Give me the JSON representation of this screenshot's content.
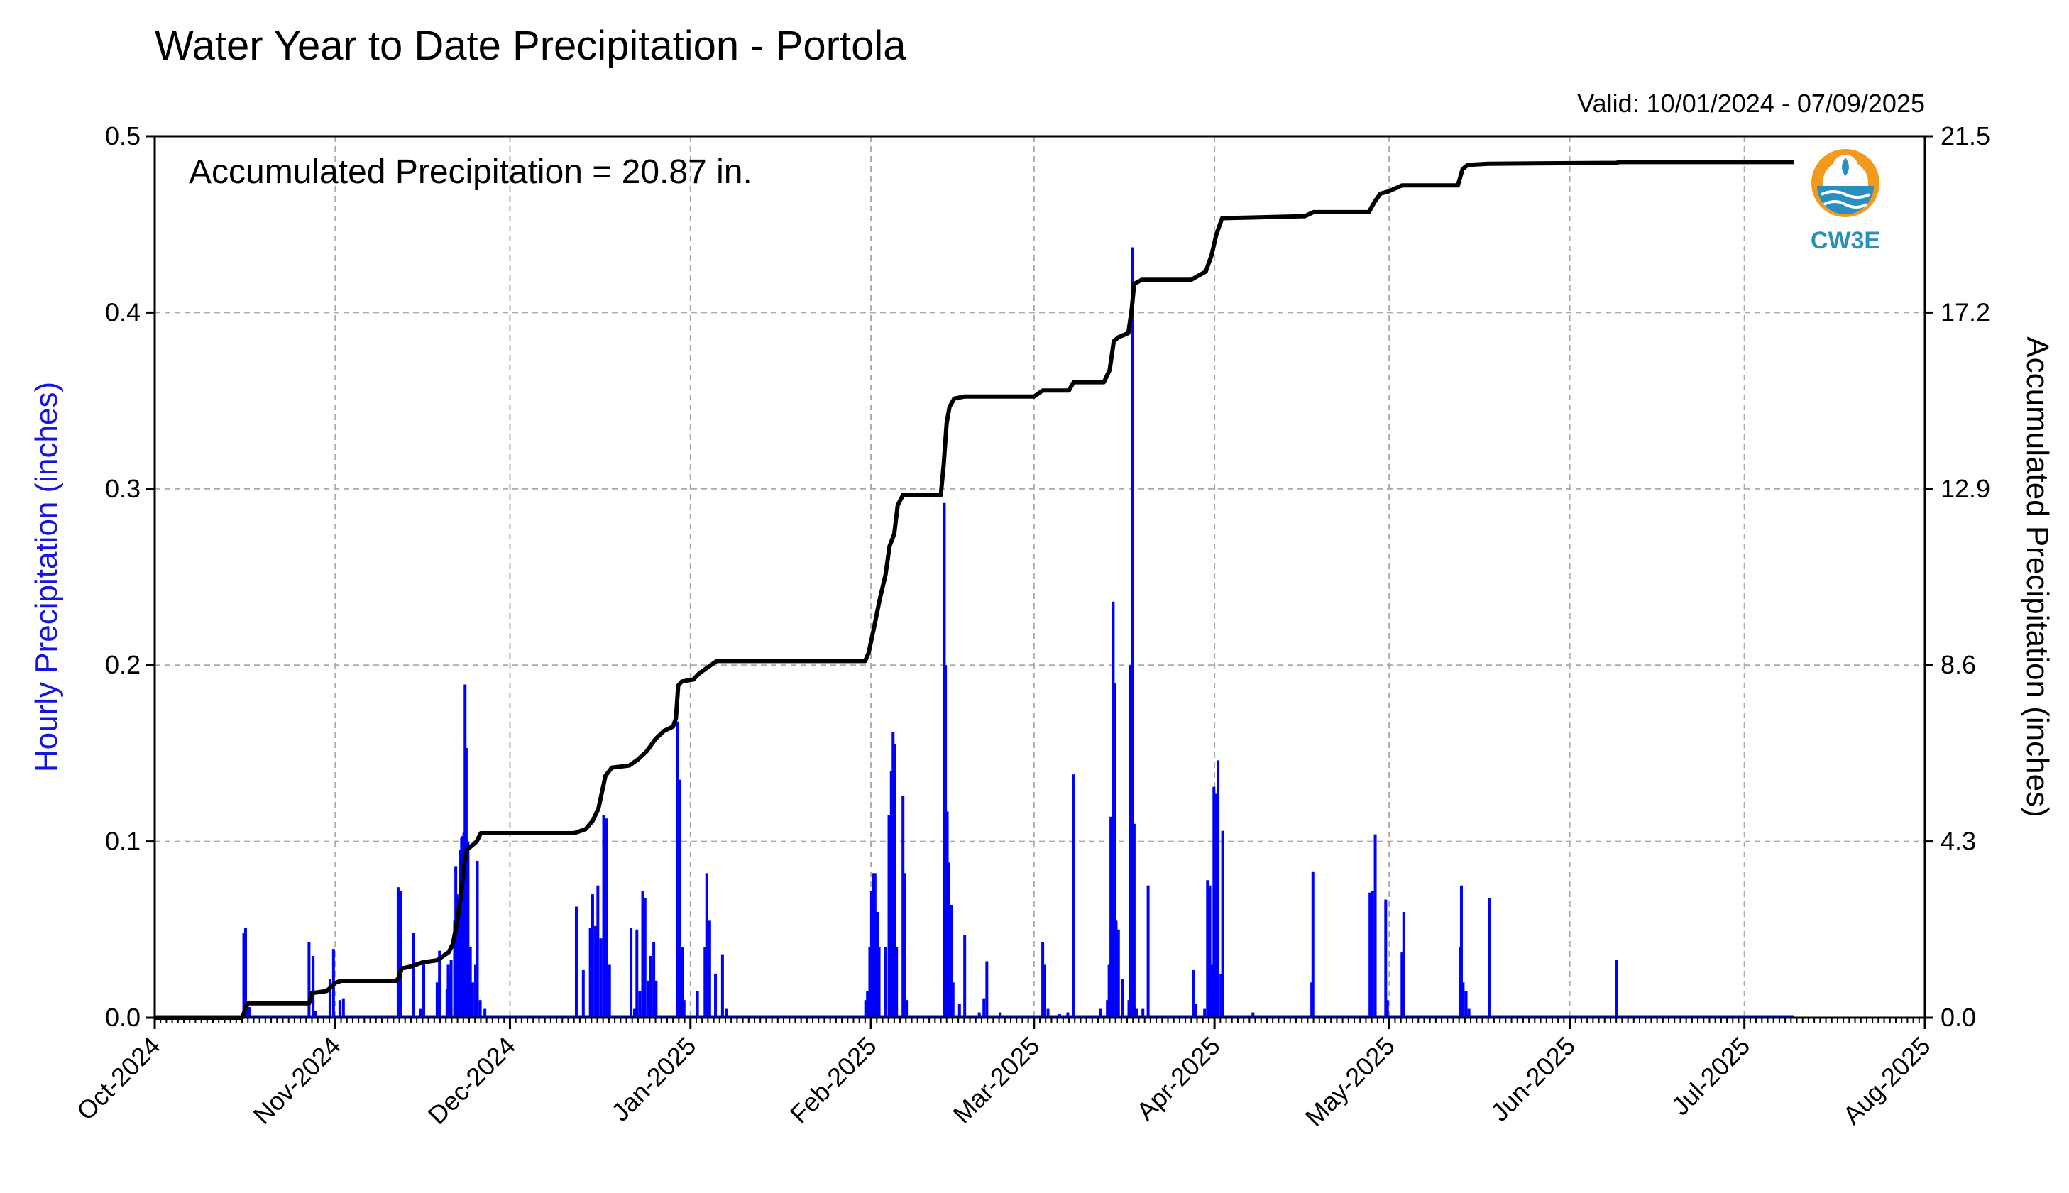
{
  "title": "Water Year to Date Precipitation - Portola",
  "valid_text": "Valid: 10/01/2024 - 07/09/2025",
  "accum_text": "Accumulated Precipitation = 20.87 in.",
  "logo": {
    "icon": "cw3e-logo-icon",
    "text": "CW3E",
    "ring_color": "#f39a1e",
    "wave_color": "#2a8fbf"
  },
  "colors": {
    "hourly": "#0000ff",
    "accum": "#000000",
    "grid": "#aaaaaa"
  },
  "chart_data": {
    "type": "bar",
    "xlabel": "",
    "ylabel": "Hourly Precipitation (inches)",
    "y2label": "Accumulated Precipitation (inches)",
    "ylim": [
      0,
      0.5
    ],
    "y2lim": [
      0,
      21.5
    ],
    "yticks": [
      "0.0",
      "0.1",
      "0.2",
      "0.3",
      "0.4",
      "0.5"
    ],
    "y2ticks": [
      "0.0",
      "4.3",
      "8.6",
      "12.9",
      "17.2",
      "21.5"
    ],
    "x_range_days": [
      0,
      304
    ],
    "xticks": [
      {
        "day": 0,
        "label": "Oct-2024"
      },
      {
        "day": 31,
        "label": "Nov-2024"
      },
      {
        "day": 61,
        "label": "Dec-2024"
      },
      {
        "day": 92,
        "label": "Jan-2025"
      },
      {
        "day": 123,
        "label": "Feb-2025"
      },
      {
        "day": 151,
        "label": "Mar-2025"
      },
      {
        "day": 182,
        "label": "Apr-2025"
      },
      {
        "day": 212,
        "label": "May-2025"
      },
      {
        "day": 243,
        "label": "Jun-2025"
      },
      {
        "day": 273,
        "label": "Jul-2025"
      },
      {
        "day": 304,
        "label": "Aug-2025"
      }
    ],
    "grid": true,
    "series": [
      {
        "name": "Hourly Precipitation",
        "type": "bar",
        "points": [
          [
            15.3,
            0.048
          ],
          [
            15.6,
            0.051
          ],
          [
            15.9,
            0.008
          ],
          [
            16.3,
            0.006
          ],
          [
            26.5,
            0.043
          ],
          [
            27.2,
            0.035
          ],
          [
            27.6,
            0.004
          ],
          [
            30.1,
            0.022
          ],
          [
            30.7,
            0.039
          ],
          [
            31.8,
            0.01
          ],
          [
            32.4,
            0.011
          ],
          [
            41.8,
            0.074
          ],
          [
            42.2,
            0.072
          ],
          [
            44.4,
            0.048
          ],
          [
            45.6,
            0.005
          ],
          [
            46.2,
            0.031
          ],
          [
            48.5,
            0.02
          ],
          [
            48.8,
            0.008
          ],
          [
            48.9,
            0.038
          ],
          [
            50.2,
            0.016
          ],
          [
            50.4,
            0.03
          ],
          [
            50.6,
            0.025
          ],
          [
            50.9,
            0.033
          ],
          [
            51.5,
            0.055
          ],
          [
            51.7,
            0.086
          ],
          [
            51.9,
            0.07
          ],
          [
            52.1,
            0.062
          ],
          [
            52.3,
            0.058
          ],
          [
            52.5,
            0.095
          ],
          [
            52.7,
            0.102
          ],
          [
            52.9,
            0.103
          ],
          [
            53.1,
            0.105
          ],
          [
            53.3,
            0.189
          ],
          [
            53.5,
            0.153
          ],
          [
            53.8,
            0.1
          ],
          [
            54.2,
            0.04
          ],
          [
            54.6,
            0.02
          ],
          [
            55.1,
            0.03
          ],
          [
            55.4,
            0.089
          ],
          [
            55.9,
            0.01
          ],
          [
            56.7,
            0.005
          ],
          [
            72.4,
            0.063
          ],
          [
            73.6,
            0.027
          ],
          [
            74.8,
            0.051
          ],
          [
            75.2,
            0.07
          ],
          [
            75.7,
            0.052
          ],
          [
            76.1,
            0.075
          ],
          [
            76.6,
            0.045
          ],
          [
            77.1,
            0.115
          ],
          [
            77.6,
            0.113
          ],
          [
            78.1,
            0.03
          ],
          [
            81.8,
            0.051
          ],
          [
            82.4,
            0.005
          ],
          [
            82.8,
            0.05
          ],
          [
            83.3,
            0.015
          ],
          [
            83.8,
            0.072
          ],
          [
            84.2,
            0.068
          ],
          [
            84.7,
            0.021
          ],
          [
            85.2,
            0.035
          ],
          [
            85.7,
            0.043
          ],
          [
            86.1,
            0.021
          ],
          [
            89.5,
            0.001
          ],
          [
            89.8,
            0.168
          ],
          [
            90.1,
            0.135
          ],
          [
            90.6,
            0.04
          ],
          [
            90.9,
            0.01
          ],
          [
            93.2,
            0.015
          ],
          [
            94.5,
            0.04
          ],
          [
            94.8,
            0.082
          ],
          [
            95.3,
            0.055
          ],
          [
            96.3,
            0.025
          ],
          [
            97.5,
            0.036
          ],
          [
            98.2,
            0.005
          ],
          [
            122.1,
            0.01
          ],
          [
            122.4,
            0.015
          ],
          [
            122.8,
            0.04
          ],
          [
            123.1,
            0.072
          ],
          [
            123.4,
            0.082
          ],
          [
            123.7,
            0.082
          ],
          [
            124.1,
            0.06
          ],
          [
            124.4,
            0.04
          ],
          [
            125.5,
            0.04
          ],
          [
            126.1,
            0.115
          ],
          [
            126.5,
            0.14
          ],
          [
            126.8,
            0.162
          ],
          [
            127.1,
            0.155
          ],
          [
            127.4,
            0.04
          ],
          [
            128.5,
            0.126
          ],
          [
            128.8,
            0.082
          ],
          [
            129.1,
            0.01
          ],
          [
            135.6,
            0.292
          ],
          [
            135.8,
            0.2
          ],
          [
            136.1,
            0.117
          ],
          [
            136.4,
            0.088
          ],
          [
            136.8,
            0.064
          ],
          [
            137.1,
            0.02
          ],
          [
            138.2,
            0.008
          ],
          [
            139.1,
            0.047
          ],
          [
            141.6,
            0.003
          ],
          [
            142.4,
            0.011
          ],
          [
            142.9,
            0.032
          ],
          [
            145.2,
            0.003
          ],
          [
            152.5,
            0.043
          ],
          [
            152.8,
            0.03
          ],
          [
            153.4,
            0.005
          ],
          [
            155.4,
            0.002
          ],
          [
            156.8,
            0.003
          ],
          [
            157.8,
            0.138
          ],
          [
            162.4,
            0.005
          ],
          [
            163.6,
            0.01
          ],
          [
            163.9,
            0.03
          ],
          [
            164.2,
            0.114
          ],
          [
            164.6,
            0.236
          ],
          [
            164.8,
            0.19
          ],
          [
            165.1,
            0.055
          ],
          [
            165.5,
            0.05
          ],
          [
            166.2,
            0.022
          ],
          [
            167.3,
            0.01
          ],
          [
            167.6,
            0.2
          ],
          [
            167.9,
            0.437
          ],
          [
            168.2,
            0.11
          ],
          [
            168.6,
            0.005
          ],
          [
            169.7,
            0.005
          ],
          [
            170.6,
            0.075
          ],
          [
            178.4,
            0.027
          ],
          [
            178.7,
            0.008
          ],
          [
            180.3,
            0.005
          ],
          [
            180.8,
            0.078
          ],
          [
            181.2,
            0.075
          ],
          [
            181.6,
            0.03
          ],
          [
            181.9,
            0.131
          ],
          [
            182.2,
            0.127
          ],
          [
            182.6,
            0.146
          ],
          [
            183.1,
            0.025
          ],
          [
            183.4,
            0.106
          ],
          [
            188.6,
            0.003
          ],
          [
            198.7,
            0.02
          ],
          [
            198.9,
            0.083
          ],
          [
            208.7,
            0.071
          ],
          [
            209.1,
            0.072
          ],
          [
            209.6,
            0.104
          ],
          [
            211.4,
            0.067
          ],
          [
            211.7,
            0.01
          ],
          [
            214.2,
            0.037
          ],
          [
            214.5,
            0.06
          ],
          [
            224.2,
            0.04
          ],
          [
            224.4,
            0.075
          ],
          [
            224.7,
            0.02
          ],
          [
            225.2,
            0.015
          ],
          [
            225.7,
            0.005
          ],
          [
            229.2,
            0.068
          ],
          [
            251.1,
            0.033
          ]
        ]
      },
      {
        "name": "Accumulated Precipitation",
        "type": "line",
        "points": [
          [
            0,
            0
          ],
          [
            15,
            0
          ],
          [
            15.8,
            0.3
          ],
          [
            16,
            0.35
          ],
          [
            26.5,
            0.35
          ],
          [
            27,
            0.6
          ],
          [
            29.5,
            0.65
          ],
          [
            30.3,
            0.75
          ],
          [
            31,
            0.85
          ],
          [
            32,
            0.9
          ],
          [
            41.5,
            0.9
          ],
          [
            42,
            1.0
          ],
          [
            42.4,
            1.2
          ],
          [
            44,
            1.25
          ],
          [
            46,
            1.35
          ],
          [
            48.5,
            1.4
          ],
          [
            49.5,
            1.5
          ],
          [
            50.5,
            1.6
          ],
          [
            51.2,
            1.8
          ],
          [
            52,
            2.4
          ],
          [
            52.6,
            3.0
          ],
          [
            53.2,
            3.8
          ],
          [
            53.6,
            4.1
          ],
          [
            54.5,
            4.2
          ],
          [
            55.3,
            4.3
          ],
          [
            56,
            4.5
          ],
          [
            72,
            4.5
          ],
          [
            74,
            4.6
          ],
          [
            75.2,
            4.8
          ],
          [
            76.2,
            5.1
          ],
          [
            77.4,
            5.9
          ],
          [
            78.5,
            6.1
          ],
          [
            81.5,
            6.15
          ],
          [
            83,
            6.3
          ],
          [
            84.5,
            6.5
          ],
          [
            86,
            6.8
          ],
          [
            87.5,
            7.0
          ],
          [
            89,
            7.1
          ],
          [
            89.5,
            7.3
          ],
          [
            89.9,
            8.1
          ],
          [
            90.5,
            8.2
          ],
          [
            92.5,
            8.25
          ],
          [
            93.5,
            8.4
          ],
          [
            95.5,
            8.6
          ],
          [
            96.5,
            8.7
          ],
          [
            98,
            8.7
          ],
          [
            122,
            8.7
          ],
          [
            122.6,
            8.9
          ],
          [
            123.5,
            9.5
          ],
          [
            124.5,
            10.2
          ],
          [
            125.5,
            10.8
          ],
          [
            126.2,
            11.5
          ],
          [
            127,
            11.8
          ],
          [
            127.6,
            12.5
          ],
          [
            128.5,
            12.75
          ],
          [
            135,
            12.75
          ],
          [
            135.5,
            13.5
          ],
          [
            136,
            14.5
          ],
          [
            136.5,
            14.9
          ],
          [
            137.3,
            15.1
          ],
          [
            139,
            15.15
          ],
          [
            151,
            15.15
          ],
          [
            152.5,
            15.3
          ],
          [
            157,
            15.3
          ],
          [
            157.8,
            15.5
          ],
          [
            163,
            15.5
          ],
          [
            164,
            15.8
          ],
          [
            164.7,
            16.5
          ],
          [
            165.5,
            16.6
          ],
          [
            167.2,
            16.7
          ],
          [
            167.8,
            17.3
          ],
          [
            168.2,
            17.9
          ],
          [
            169.5,
            18.0
          ],
          [
            178,
            18.0
          ],
          [
            180.5,
            18.2
          ],
          [
            181.5,
            18.6
          ],
          [
            182.3,
            19.1
          ],
          [
            183.3,
            19.5
          ],
          [
            197.5,
            19.55
          ],
          [
            199,
            19.65
          ],
          [
            208.5,
            19.65
          ],
          [
            209.5,
            19.9
          ],
          [
            210.5,
            20.1
          ],
          [
            211.8,
            20.15
          ],
          [
            214.2,
            20.3
          ],
          [
            223.8,
            20.3
          ],
          [
            224.6,
            20.7
          ],
          [
            225.5,
            20.8
          ],
          [
            229,
            20.83
          ],
          [
            251,
            20.85
          ],
          [
            251.5,
            20.87
          ],
          [
            281.5,
            20.87
          ]
        ]
      }
    ]
  }
}
